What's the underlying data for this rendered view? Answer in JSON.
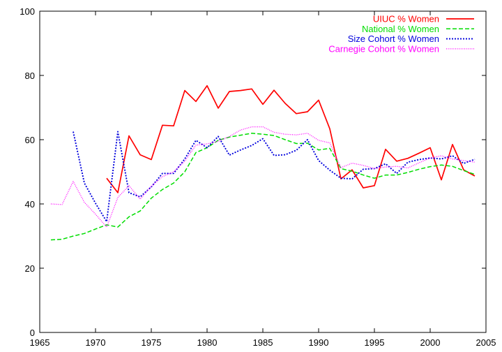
{
  "chart_data": {
    "type": "line",
    "title": "",
    "xlabel": "",
    "ylabel": "",
    "xlim": [
      1965,
      2005
    ],
    "ylim": [
      0,
      100
    ],
    "xticks": [
      1965,
      1970,
      1975,
      1980,
      1985,
      1990,
      1995,
      2000,
      2005
    ],
    "yticks": [
      0,
      20,
      40,
      60,
      80,
      100
    ],
    "grid": false,
    "legend": "top-right",
    "series": [
      {
        "name": "UIUC % Women",
        "color": "#ff0000",
        "dash": "solid",
        "x": [
          1971,
          1972,
          1973,
          1974,
          1975,
          1976,
          1977,
          1978,
          1979,
          1980,
          1981,
          1982,
          1983,
          1984,
          1985,
          1986,
          1987,
          1988,
          1989,
          1990,
          1991,
          1992,
          1993,
          1994,
          1995,
          1996,
          1997,
          1998,
          1999,
          2000,
          2001,
          2002,
          2003,
          2004
        ],
        "values": [
          48,
          43.5,
          61.2,
          55.3,
          53.8,
          64.5,
          64.3,
          75.3,
          71.9,
          76.8,
          69.8,
          75,
          75.3,
          75.8,
          71,
          75.4,
          71.3,
          68.1,
          68.7,
          72.3,
          63.4,
          47.8,
          50.6,
          45,
          45.7,
          57,
          53.3,
          54.2,
          55.8,
          57.5,
          47.5,
          58.5,
          50.6,
          48.7
        ]
      },
      {
        "name": "National % Women",
        "color": "#00dd00",
        "dash": "dashed",
        "x": [
          1966,
          1967,
          1968,
          1969,
          1970,
          1971,
          1972,
          1973,
          1974,
          1975,
          1976,
          1977,
          1978,
          1979,
          1980,
          1981,
          1982,
          1983,
          1984,
          1985,
          1986,
          1987,
          1988,
          1989,
          1990,
          1991,
          1992,
          1993,
          1994,
          1995,
          1996,
          1997,
          1998,
          1999,
          2000,
          2001,
          2002,
          2003,
          2004
        ],
        "values": [
          28.8,
          29,
          30,
          30.8,
          32.2,
          33.5,
          32.8,
          36,
          37.8,
          41.8,
          44.5,
          46.5,
          50,
          56,
          57.5,
          59.8,
          60.8,
          61.4,
          62,
          61.7,
          61.3,
          60,
          58.8,
          58.9,
          56.8,
          57.3,
          51,
          50.2,
          49,
          48,
          49,
          49,
          49.8,
          50.8,
          51.6,
          52.1,
          51.7,
          50.4,
          49.2
        ]
      },
      {
        "name": "Size Cohort % Women",
        "color": "#0000dd",
        "dash": "dotted",
        "x": [
          1968,
          1969,
          1970,
          1971,
          1972,
          1973,
          1974,
          1975,
          1976,
          1977,
          1978,
          1979,
          1980,
          1981,
          1982,
          1983,
          1984,
          1985,
          1986,
          1987,
          1988,
          1989,
          1990,
          1991,
          1992,
          1993,
          1994,
          1995,
          1996,
          1997,
          1998,
          1999,
          2000,
          2001,
          2002,
          2003,
          2004
        ],
        "values": [
          62.5,
          46.5,
          40.2,
          34.5,
          62.5,
          43.5,
          42.2,
          45.3,
          49.5,
          49.5,
          54,
          59.8,
          57.5,
          61,
          55.2,
          56.8,
          58.2,
          60.3,
          55.1,
          55.3,
          56.7,
          60,
          53.5,
          50.5,
          48,
          47.8,
          50.8,
          51,
          52.5,
          49.5,
          53,
          53.8,
          54.3,
          54,
          55,
          52.6,
          53.9
        ]
      },
      {
        "name": "Carnegie Cohort % Women",
        "color": "#ff00ff",
        "dash": "fine-dotted",
        "x": [
          1966,
          1967,
          1968,
          1969,
          1970,
          1971,
          1972,
          1973,
          1974,
          1975,
          1976,
          1977,
          1978,
          1979,
          1980,
          1981,
          1982,
          1983,
          1984,
          1985,
          1986,
          1987,
          1988,
          1989,
          1990,
          1991,
          1992,
          1993,
          1994,
          1995,
          1996,
          1997,
          1998,
          1999,
          2000,
          2001,
          2002,
          2003,
          2004
        ],
        "values": [
          40,
          39.8,
          47,
          40.5,
          36.8,
          32.8,
          42,
          45.7,
          41.5,
          45.5,
          48.5,
          50,
          53.3,
          58.3,
          58.7,
          59.5,
          61,
          63,
          64,
          64,
          62.3,
          61.7,
          61.5,
          62,
          59.8,
          59,
          51.3,
          52.7,
          52,
          51,
          51.5,
          51.7,
          51.2,
          52.8,
          54.3,
          55,
          54,
          53.5,
          53
        ]
      }
    ]
  }
}
